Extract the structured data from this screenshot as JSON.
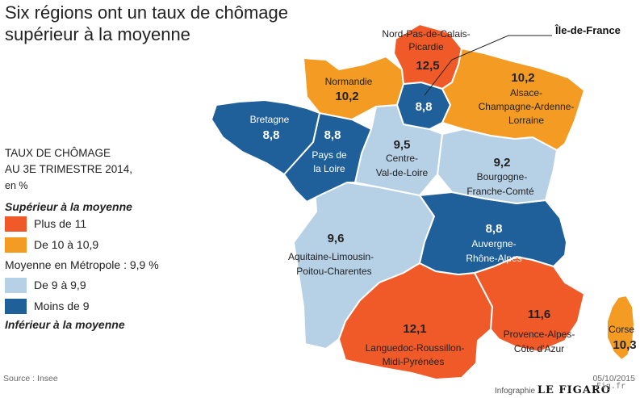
{
  "title_line1": "Six régions ont un taux de chômage",
  "title_line2": "supérieur à la moyenne",
  "legend": {
    "head_line1": "TAUX DE CHÔMAGE",
    "head_line2": "AU 3E TRIMESTRE 2014,",
    "unit": "en %",
    "above_label": "Supérieur à la moyenne",
    "below_label": "Inférieur à la moyenne",
    "average_label": "Moyenne en Métropole : 9,9 %",
    "items": [
      {
        "label": "Plus de 11",
        "color": "#f05a28"
      },
      {
        "label": "De 10 à 10,9",
        "color": "#f39b22"
      },
      {
        "label": "De 9 à 9,9",
        "color": "#b6d0e6"
      },
      {
        "label": "Moins de 9",
        "color": "#1f5f9a"
      }
    ]
  },
  "regions": {
    "npdc": {
      "name1": "Nord-Pas-de-Calais-",
      "name2": "Picardie",
      "value": "12,5"
    },
    "normandie": {
      "name1": "Normandie",
      "value": "10,2"
    },
    "idf": {
      "name1": "Île-de-France",
      "value": "8,8"
    },
    "acal": {
      "name1": "Alsace-",
      "name2": "Champagne-Ardenne-",
      "name3": "Lorraine",
      "value": "10,2"
    },
    "bretagne": {
      "name1": "Bretagne",
      "value": "8,8"
    },
    "pdl": {
      "name1": "Pays de",
      "name2": "la Loire",
      "value": "8,8"
    },
    "cvl": {
      "name1": "Centre-",
      "name2": "Val-de-Loire",
      "value": "9,5"
    },
    "bfc": {
      "name1": "Bourgogne-",
      "name2": "Franche-Comté",
      "value": "9,2"
    },
    "alpc": {
      "name1": "Aquitaine-Limousin-",
      "name2": "Poitou-Charentes",
      "value": "9,6"
    },
    "ara": {
      "name1": "Auvergne-",
      "name2": "Rhône-Alpes",
      "value": "8,8"
    },
    "lrmp": {
      "name1": "Languedoc-Roussillon-",
      "name2": "Midi-Pyrénées",
      "value": "12,1"
    },
    "paca": {
      "name1": "Provence-Alpes-",
      "name2": "Côte d'Azur",
      "value": "11,6"
    },
    "corse": {
      "name1": "Corse",
      "value": "10,3"
    }
  },
  "source": "Source : Insee",
  "date": "05/10/2015",
  "credit_prefix": "Infographie",
  "credit_brand": "LE FIGARO",
  "watermark": "Fig.fr"
}
